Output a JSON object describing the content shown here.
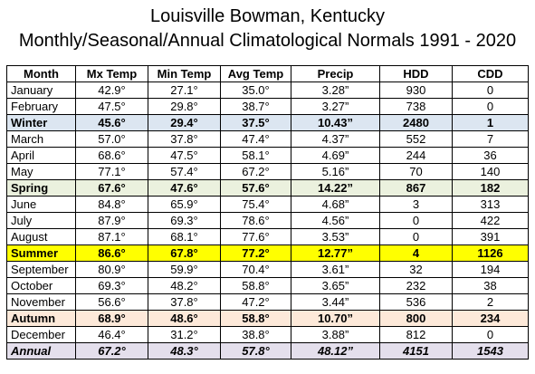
{
  "title_line1": "Louisville Bowman, Kentucky",
  "title_line2": "Monthly/Seasonal/Annual Climatological Normals 1991 - 2020",
  "headers": [
    "Month",
    "Mx Temp",
    "Min Temp",
    "Avg Temp",
    "Precip",
    "HDD",
    "CDD"
  ],
  "rows": [
    {
      "name": "January",
      "max": "42.9°",
      "min": "27.1°",
      "avg": "35.0°",
      "precip": "3.28”",
      "hdd": "930",
      "cdd": "0",
      "style": ""
    },
    {
      "name": "February",
      "max": "47.5°",
      "min": "29.8°",
      "avg": "38.7°",
      "precip": "3.27”",
      "hdd": "738",
      "cdd": "0",
      "style": ""
    },
    {
      "name": "Winter",
      "max": "45.6°",
      "min": "29.4°",
      "avg": "37.5°",
      "precip": "10.43”",
      "hdd": "2480",
      "cdd": "1",
      "style": "winter"
    },
    {
      "name": "March",
      "max": "57.0°",
      "min": "37.8°",
      "avg": "47.4°",
      "precip": "4.37”",
      "hdd": "552",
      "cdd": "7",
      "style": ""
    },
    {
      "name": "April",
      "max": "68.6°",
      "min": "47.5°",
      "avg": "58.1°",
      "precip": "4.69”",
      "hdd": "244",
      "cdd": "36",
      "style": ""
    },
    {
      "name": "May",
      "max": "77.1°",
      "min": "57.4°",
      "avg": "67.2°",
      "precip": "5.16”",
      "hdd": "70",
      "cdd": "140",
      "style": ""
    },
    {
      "name": "Spring",
      "max": "67.6°",
      "min": "47.6°",
      "avg": "57.6°",
      "precip": "14.22”",
      "hdd": "867",
      "cdd": "182",
      "style": "spring"
    },
    {
      "name": "June",
      "max": "84.8°",
      "min": "65.9°",
      "avg": "75.4°",
      "precip": "4.68”",
      "hdd": "3",
      "cdd": "313",
      "style": ""
    },
    {
      "name": "July",
      "max": "87.9°",
      "min": "69.3°",
      "avg": "78.6°",
      "precip": "4.56”",
      "hdd": "0",
      "cdd": "422",
      "style": ""
    },
    {
      "name": "August",
      "max": "87.1°",
      "min": "68.1°",
      "avg": "77.6°",
      "precip": "3.53”",
      "hdd": "0",
      "cdd": "391",
      "style": ""
    },
    {
      "name": "Summer",
      "max": "86.6°",
      "min": "67.8°",
      "avg": "77.2°",
      "precip": "12.77”",
      "hdd": "4",
      "cdd": "1126",
      "style": "summer"
    },
    {
      "name": "September",
      "max": "80.9°",
      "min": "59.9°",
      "avg": "70.4°",
      "precip": "3.61”",
      "hdd": "32",
      "cdd": "194",
      "style": ""
    },
    {
      "name": "October",
      "max": "69.3°",
      "min": "48.2°",
      "avg": "58.8°",
      "precip": "3.65”",
      "hdd": "232",
      "cdd": "38",
      "style": ""
    },
    {
      "name": "November",
      "max": "56.6°",
      "min": "37.8°",
      "avg": "47.2°",
      "precip": "3.44”",
      "hdd": "536",
      "cdd": "2",
      "style": ""
    },
    {
      "name": "Autumn",
      "max": "68.9°",
      "min": "48.6°",
      "avg": "58.8°",
      "precip": "10.70”",
      "hdd": "800",
      "cdd": "234",
      "style": "autumn"
    },
    {
      "name": "December",
      "max": "46.4°",
      "min": "31.2°",
      "avg": "38.8°",
      "precip": "3.88”",
      "hdd": "812",
      "cdd": "0",
      "style": ""
    },
    {
      "name": "Annual",
      "max": "67.2°",
      "min": "48.3°",
      "avg": "57.8°",
      "precip": "48.12”",
      "hdd": "4151",
      "cdd": "1543",
      "style": "annual"
    }
  ],
  "row_colors": {
    "winter": "#dce6f1",
    "spring": "#ebf1de",
    "summer": "#ffff00",
    "autumn": "#fde9d9",
    "annual": "#e4dfec"
  }
}
